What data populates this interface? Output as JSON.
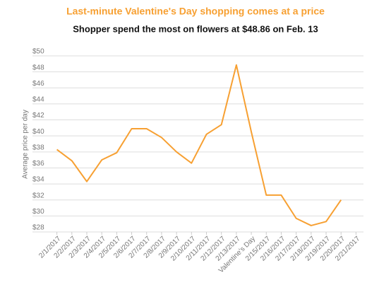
{
  "chart_data": {
    "type": "line",
    "title": "Last-minute Valentine's Day shopping comes at a price",
    "subtitle": "Shopper spend the most on flowers at $48.86 on Feb. 13",
    "y_label": "Average price per day",
    "categories": [
      "2/1/2017",
      "2/2/2017",
      "2/3/2017",
      "2/4/2017",
      "2/5/2017",
      "2/6/2017",
      "2/7/2017",
      "2/8/2017",
      "2/9/2017",
      "2/10/2017",
      "2/11/2017",
      "2/12/2017",
      "2/13/2017",
      "Valentine's Day",
      "2/15/2017",
      "2/16/2017",
      "2/17/2017",
      "2/18/2017",
      "2/19/2017",
      "2/20/2017",
      "2/21/2017"
    ],
    "series": [
      {
        "name": "Average price per day",
        "color": "#f7a032",
        "values": [
          38.3,
          36.9,
          34.3,
          37.0,
          37.9,
          40.9,
          40.9,
          39.8,
          38.0,
          36.6,
          40.2,
          41.4,
          48.86,
          40.5,
          32.6,
          32.6,
          29.7,
          28.8,
          29.3,
          32.0,
          null
        ]
      }
    ],
    "ylim": [
      28,
      50
    ],
    "yticks": [
      {
        "value": 28,
        "label": "$28"
      },
      {
        "value": 30,
        "label": "$30"
      },
      {
        "value": 32,
        "label": "$32"
      },
      {
        "value": 34,
        "label": "$34"
      },
      {
        "value": 36,
        "label": "$36"
      },
      {
        "value": 38,
        "label": "$38"
      },
      {
        "value": 40,
        "label": "$40"
      },
      {
        "value": 42,
        "label": "$42"
      },
      {
        "value": 44,
        "label": "$44"
      },
      {
        "value": 46,
        "label": "$46"
      },
      {
        "value": 48,
        "label": "$48"
      },
      {
        "value": 50,
        "label": "$50"
      }
    ],
    "grid": true
  }
}
